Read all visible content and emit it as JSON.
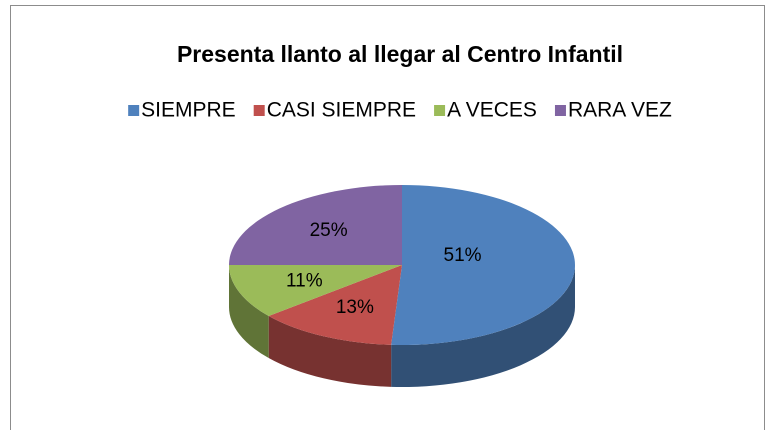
{
  "chart_data": {
    "type": "pie",
    "title": "Presenta llanto al llegar al Centro Infantil",
    "categories": [
      "SIEMPRE",
      "CASI SIEMPRE",
      "A VECES",
      "RARA VEZ"
    ],
    "values": [
      51,
      13,
      11,
      25
    ],
    "value_labels": [
      "51%",
      "13%",
      "11%",
      "25%"
    ],
    "colors": [
      "#4f81bd",
      "#c0504d",
      "#9bbb59",
      "#8064a2"
    ],
    "legend": "top",
    "three_d": true
  }
}
